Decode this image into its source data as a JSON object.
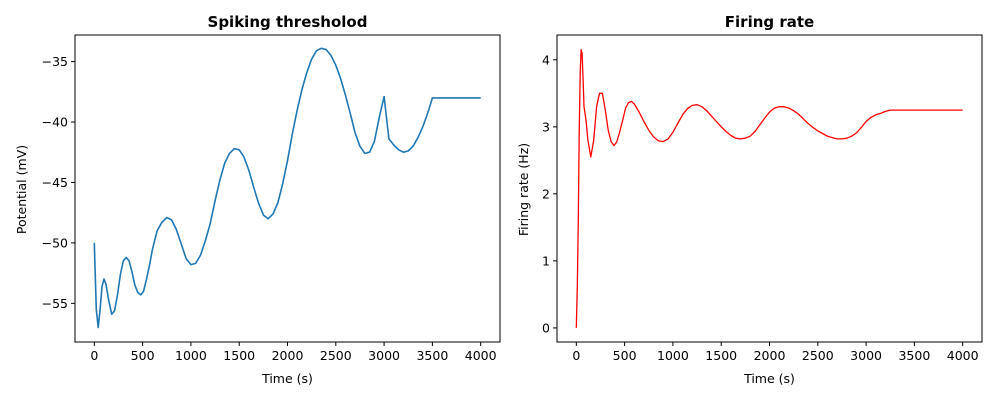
{
  "chart_data": [
    {
      "type": "line",
      "title": "Spiking thresholod",
      "xlabel": "Time (s)",
      "ylabel": "Potential (mV)",
      "xlim": [
        -200,
        4200
      ],
      "ylim": [
        -58.2,
        -32.8
      ],
      "xticks": [
        0,
        500,
        1000,
        1500,
        2000,
        2500,
        3000,
        3500,
        4000
      ],
      "yticks": [
        -55,
        -50,
        -45,
        -40,
        -35
      ],
      "ytick_labels": [
        "−55",
        "−50",
        "−45",
        "−40",
        "−35"
      ],
      "grid": false,
      "series": [
        {
          "color": "#1f77b4",
          "x": [
            0,
            20,
            40,
            60,
            80,
            100,
            120,
            150,
            180,
            210,
            240,
            270,
            300,
            330,
            360,
            390,
            420,
            450,
            480,
            510,
            540,
            570,
            600,
            650,
            700,
            750,
            800,
            850,
            900,
            950,
            1000,
            1050,
            1100,
            1150,
            1200,
            1250,
            1300,
            1350,
            1400,
            1450,
            1500,
            1550,
            1600,
            1650,
            1700,
            1750,
            1800,
            1850,
            1900,
            1950,
            2000,
            2050,
            2100,
            2150,
            2200,
            2250,
            2300,
            2350,
            2400,
            2450,
            2500,
            2550,
            2600,
            2650,
            2700,
            2750,
            2800,
            2850,
            2900,
            2950,
            3000,
            3050,
            3100,
            3150,
            3200,
            3250,
            3300,
            3350,
            3400,
            3450,
            3500,
            3550,
            3600,
            3650,
            3700,
            3750,
            3800,
            3850,
            3900,
            3950,
            4000
          ],
          "y": [
            -50.0,
            -55.5,
            -57.0,
            -55.5,
            -53.6,
            -53.0,
            -53.4,
            -54.8,
            -55.9,
            -55.6,
            -54.3,
            -52.6,
            -51.5,
            -51.2,
            -51.5,
            -52.4,
            -53.5,
            -54.1,
            -54.3,
            -54.0,
            -53.0,
            -51.9,
            -50.6,
            -49.0,
            -48.3,
            -47.9,
            -48.1,
            -48.9,
            -50.1,
            -51.3,
            -51.8,
            -51.7,
            -51.0,
            -49.8,
            -48.4,
            -46.5,
            -44.8,
            -43.4,
            -42.6,
            -42.2,
            -42.3,
            -42.9,
            -44.0,
            -45.4,
            -46.7,
            -47.7,
            -48.0,
            -47.6,
            -46.7,
            -45.1,
            -43.2,
            -41.0,
            -39.0,
            -37.3,
            -35.9,
            -34.8,
            -34.1,
            -33.9,
            -34.0,
            -34.5,
            -35.3,
            -36.4,
            -37.8,
            -39.3,
            -40.9,
            -42.0,
            -42.6,
            -42.5,
            -41.6,
            -39.6,
            -37.9,
            -41.4,
            -41.9,
            -42.3,
            -42.5,
            -42.4,
            -42.0,
            -41.3,
            -40.4,
            -39.3,
            -38.0,
            -38.0,
            -38.0,
            -38.0,
            -38.0,
            -38.0,
            -38.0,
            -38.0,
            -38.0,
            -38.0,
            -38.0
          ]
        }
      ]
    },
    {
      "type": "line",
      "title": "Firing rate",
      "xlabel": "Time (s)",
      "ylabel": "Firing rate (Hz)",
      "xlim": [
        -200,
        4200
      ],
      "ylim": [
        -0.21,
        4.37
      ],
      "xticks": [
        0,
        500,
        1000,
        1500,
        2000,
        2500,
        3000,
        3500,
        4000
      ],
      "yticks": [
        0,
        1,
        2,
        3,
        4
      ],
      "ytick_labels": [
        "0",
        "1",
        "2",
        "3",
        "4"
      ],
      "grid": false,
      "series": [
        {
          "color": "#ff0000",
          "x": [
            0,
            10,
            20,
            30,
            40,
            50,
            60,
            70,
            80,
            100,
            120,
            150,
            180,
            210,
            240,
            270,
            300,
            330,
            360,
            390,
            420,
            450,
            480,
            510,
            540,
            570,
            600,
            650,
            700,
            750,
            800,
            850,
            900,
            950,
            1000,
            1050,
            1100,
            1150,
            1200,
            1250,
            1300,
            1350,
            1400,
            1450,
            1500,
            1550,
            1600,
            1650,
            1700,
            1750,
            1800,
            1850,
            1900,
            1950,
            2000,
            2050,
            2100,
            2150,
            2200,
            2250,
            2300,
            2350,
            2400,
            2450,
            2500,
            2550,
            2600,
            2650,
            2700,
            2750,
            2800,
            2850,
            2900,
            2950,
            3000,
            3050,
            3100,
            3150,
            3200,
            3250,
            3300,
            3350,
            3400,
            3450,
            3500,
            3550,
            3600,
            3650,
            3700,
            3750,
            3800,
            3850,
            3900,
            3950,
            4000
          ],
          "y": [
            0.0,
            0.6,
            1.6,
            2.9,
            3.8,
            4.15,
            4.1,
            3.7,
            3.3,
            3.1,
            2.8,
            2.55,
            2.8,
            3.3,
            3.5,
            3.5,
            3.25,
            2.95,
            2.78,
            2.72,
            2.78,
            2.93,
            3.1,
            3.28,
            3.36,
            3.38,
            3.34,
            3.22,
            3.08,
            2.95,
            2.85,
            2.79,
            2.78,
            2.82,
            2.92,
            3.05,
            3.18,
            3.27,
            3.32,
            3.33,
            3.3,
            3.24,
            3.16,
            3.08,
            3.0,
            2.93,
            2.87,
            2.83,
            2.82,
            2.83,
            2.86,
            2.93,
            3.03,
            3.13,
            3.22,
            3.28,
            3.3,
            3.3,
            3.28,
            3.24,
            3.19,
            3.12,
            3.05,
            2.99,
            2.94,
            2.9,
            2.86,
            2.84,
            2.82,
            2.82,
            2.83,
            2.86,
            2.91,
            2.99,
            3.08,
            3.14,
            3.18,
            3.2,
            3.23,
            3.25,
            3.25,
            3.25,
            3.25,
            3.25,
            3.25,
            3.25,
            3.25,
            3.25,
            3.25,
            3.25,
            3.25,
            3.25,
            3.25,
            3.25,
            3.25
          ]
        }
      ]
    }
  ]
}
